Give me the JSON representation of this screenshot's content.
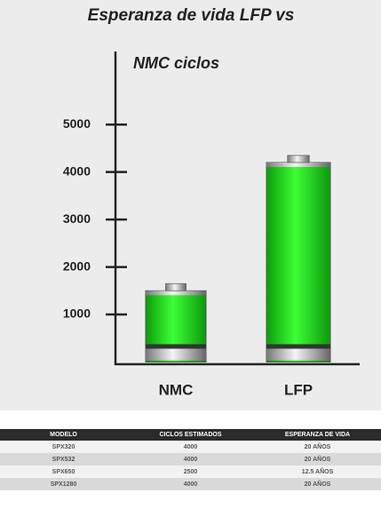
{
  "chart_data": {
    "type": "bar",
    "title": "Esperanza de vida LFP vs",
    "subtitle": "NMC ciclos",
    "categories": [
      "NMC",
      "LFP"
    ],
    "values": [
      1500,
      4200
    ],
    "color": "#22e01c",
    "ylim": [
      0,
      6500
    ],
    "yticks": [
      1000,
      2000,
      3000,
      4000,
      5000
    ],
    "grid": false
  },
  "table": {
    "header": [
      "MODELO",
      "CICLOS ESTIMADOS",
      "ESPERANZA DE VIDA"
    ],
    "rows": [
      [
        "SPX320",
        "4000",
        "20 AÑOS"
      ],
      [
        "SPX532",
        "4000",
        "20 AÑOS"
      ],
      [
        "SPX650",
        "2500",
        "12.5 AÑOS"
      ],
      [
        "SPX1280",
        "4000",
        "20 AÑOS"
      ]
    ]
  }
}
